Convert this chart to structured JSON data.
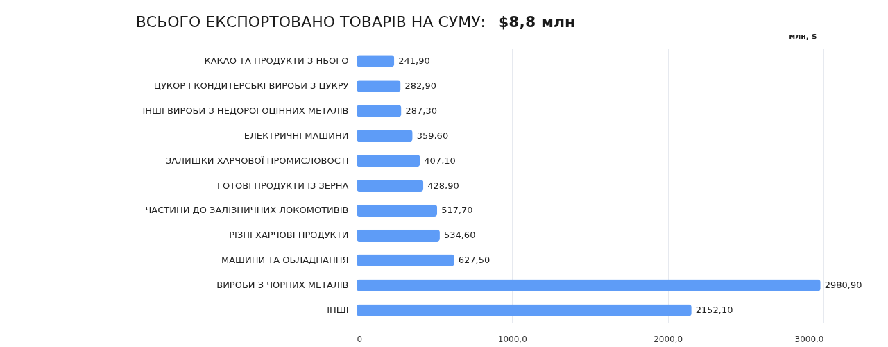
{
  "chart_data": {
    "type": "bar",
    "orientation": "horizontal",
    "title": "ВСЬОГО ЕКСПОРТОВАНО ТОВАРІВ НА СУМУ:",
    "annotations": [
      "$8,8 млн"
    ],
    "xlabel": "млн, $",
    "categories": [
      "КАКАО ТА ПРОДУКТИ З НЬОГО",
      "ЦУКОР І КОНДИТЕРСЬКІ ВИРОБИ З ЦУКРУ",
      "ІНШІ ВИРОБИ З НЕДОРОГОЦІННИХ МЕТАЛІВ",
      "ЕЛЕКТРИЧНІ МАШИНИ",
      "ЗАЛИШКИ ХАРЧОВОЇ ПРОМИСЛОВОСТІ",
      "ГОТОВІ ПРОДУКТИ ІЗ ЗЕРНА",
      "ЧАСТИНИ ДО ЗАЛІЗНИЧНИХ ЛОКОМОТИВІВ",
      "РІЗНІ ХАРЧОВІ ПРОДУКТИ",
      "МАШИНИ ТА ОБЛАДНАННЯ",
      "ВИРОБИ З ЧОРНИХ МЕТАЛІВ",
      "ІНШІ"
    ],
    "values": [
      241.9,
      282.9,
      287.3,
      359.6,
      407.1,
      428.9,
      517.7,
      534.6,
      627.5,
      2980.9,
      2152.1
    ],
    "value_labels": [
      "241,90",
      "282,90",
      "287,30",
      "359,60",
      "407,10",
      "428,90",
      "517,70",
      "534,60",
      "627,50",
      "2980,90",
      "2152,10"
    ],
    "color": "#5e9cf7",
    "xlim": [
      0,
      3000
    ],
    "xticks": [
      0,
      {
        "value": 1000,
        "label": "1000,0"
      },
      {
        "value": 2000,
        "label": "2000,0"
      },
      {
        "value": 3000,
        "label": "3000,0"
      }
    ],
    "grid": "x"
  }
}
